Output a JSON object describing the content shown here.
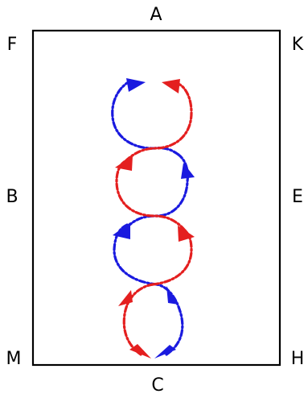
{
  "arena": {
    "letters": {
      "A": "A",
      "K": "K",
      "E": "E",
      "H": "H",
      "C": "C",
      "M": "M",
      "B": "B",
      "F": "F"
    }
  },
  "colors": {
    "left_rider": "#1a1adf",
    "right_rider": "#e41f1f",
    "arena_border": "#000000",
    "background": "#ffffff"
  }
}
